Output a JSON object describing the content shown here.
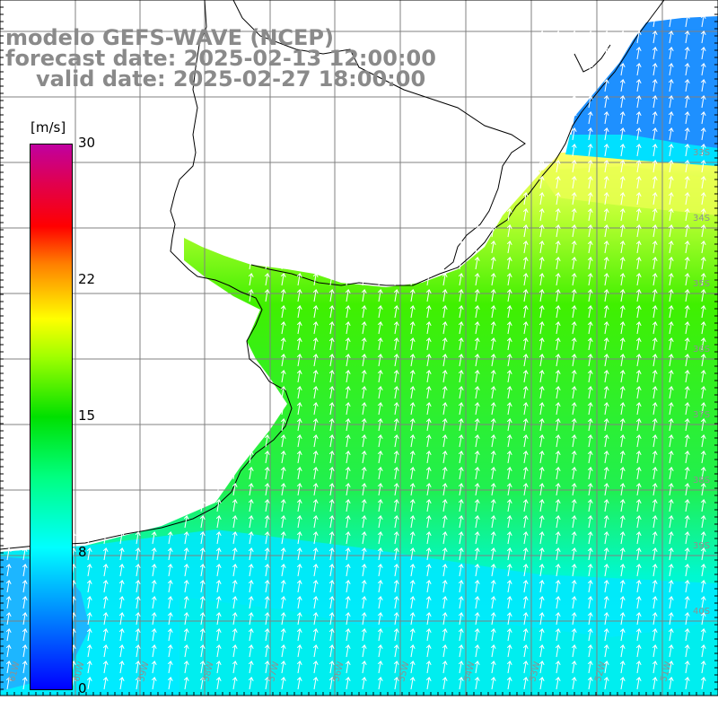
{
  "title": {
    "line1": "modelo GEFS-WAVE (NCEP)",
    "line2": "forecast date: 2025-02-13 12:00:00",
    "line3": "valid date: 2025-02-27 18:00:00"
  },
  "colorbar": {
    "unit": "[m/s]",
    "ticks": [
      "30",
      "22",
      "15",
      "8",
      "0"
    ],
    "tick_values": [
      30,
      22,
      15,
      8,
      0
    ],
    "colors": [
      "#0000ff",
      "#0080ff",
      "#00ffff",
      "#00ff80",
      "#00e000",
      "#a0ff00",
      "#ffff00",
      "#ff8000",
      "#ff0000",
      "#c000a0"
    ]
  },
  "map": {
    "variable": "wind speed and direction",
    "land_color": "#ffffff",
    "grid_color": "#808080",
    "lat_labels": [
      "33S",
      "34S",
      "35S",
      "36S",
      "37S",
      "38S",
      "39S",
      "40S"
    ],
    "lon_labels": [
      "61W",
      "60W",
      "59W",
      "58W",
      "57W",
      "56W",
      "55W",
      "54W",
      "53W",
      "52W",
      "51W"
    ],
    "prevailing_wind": "from the south-southwest (arrows pointing north-northeast)"
  }
}
